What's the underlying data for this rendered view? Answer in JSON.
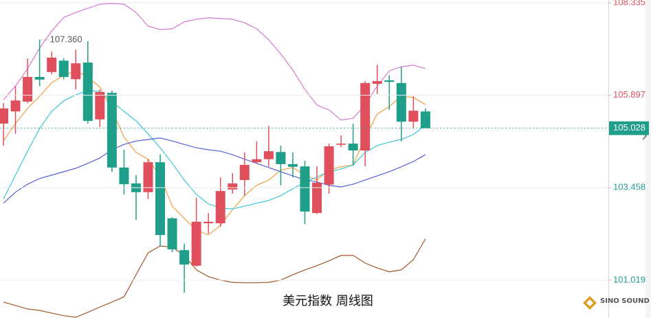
{
  "chart_data": {
    "type": "candlestick",
    "title": "美元指数 周线图",
    "watermark": "SINO SOUND",
    "up_color": "#e0505c",
    "down_color": "#1f9e89",
    "ylim": [
      100.02,
      108.41
    ],
    "yticks": [
      108.335,
      105.897,
      103.458,
      101.019
    ],
    "grid": true,
    "last_price": 105.028,
    "high_marker": {
      "value": 107.36,
      "label": "107.360"
    },
    "open": [
      105.15,
      105.47,
      105.73,
      106.38,
      106.51,
      106.81,
      106.32,
      106.76,
      105.26,
      105.96,
      103.99,
      103.57,
      103.34,
      104.13,
      102.65,
      101.81,
      101.4,
      102.52,
      102.52,
      103.41,
      103.66,
      104.13,
      104.21,
      104.4,
      104.08,
      104.02,
      102.79,
      103.54,
      104.59,
      104.62,
      104.44,
      106.2,
      106.29,
      106.22,
      105.2,
      105.47
    ],
    "high": [
      105.69,
      106.13,
      106.87,
      107.36,
      107.05,
      106.87,
      107.1,
      107.32,
      106.05,
      106.02,
      104.46,
      103.79,
      104.21,
      104.33,
      102.68,
      101.98,
      103.19,
      102.79,
      103.73,
      103.84,
      104.39,
      104.68,
      105.09,
      104.57,
      104.39,
      104.17,
      104.02,
      104.62,
      104.84,
      105.15,
      106.27,
      106.7,
      106.43,
      106.65,
      105.87,
      105.55
    ],
    "low": [
      104.57,
      104.88,
      105.69,
      106.14,
      106.45,
      106.32,
      106.05,
      105.15,
      105.06,
      103.88,
      103.28,
      102.61,
      103.16,
      101.92,
      101.76,
      100.69,
      101.38,
      102.25,
      102.43,
      103.3,
      103.25,
      104.1,
      104.01,
      103.52,
      103.73,
      102.5,
      102.76,
      103.3,
      104.53,
      104.04,
      104.02,
      105.93,
      105.51,
      104.68,
      105.02,
      105.11
    ],
    "close": [
      105.55,
      105.76,
      106.38,
      106.31,
      106.89,
      106.38,
      106.74,
      105.22,
      105.98,
      103.99,
      103.55,
      103.34,
      104.13,
      102.21,
      101.83,
      101.43,
      102.56,
      102.56,
      103.37,
      103.57,
      104.06,
      104.21,
      104.42,
      104.08,
      104.01,
      102.83,
      103.59,
      104.55,
      104.62,
      104.44,
      106.22,
      106.27,
      106.25,
      105.2,
      105.49,
      105.03
    ],
    "overlays": [
      {
        "color": "#f0a040",
        "values": [
          104.69,
          105.15,
          105.55,
          105.87,
          106.23,
          106.42,
          106.54,
          106.38,
          106.11,
          105.51,
          104.79,
          104.39,
          104.21,
          103.77,
          102.97,
          102.65,
          102.34,
          102.21,
          102.47,
          102.88,
          103.25,
          103.52,
          103.66,
          103.92,
          103.99,
          103.79,
          103.66,
          103.93,
          104.01,
          104.06,
          104.79,
          105.4,
          105.6,
          105.87,
          105.84,
          105.65
        ]
      },
      {
        "color": "#3cc8d8",
        "values": [
          103.16,
          103.79,
          104.42,
          105.02,
          105.47,
          105.75,
          105.91,
          106.02,
          106.0,
          105.73,
          105.47,
          105.22,
          104.88,
          104.51,
          104.1,
          103.66,
          103.28,
          103.03,
          102.92,
          102.9,
          102.97,
          103.05,
          103.12,
          103.25,
          103.43,
          103.61,
          103.74,
          103.88,
          103.95,
          104.06,
          104.39,
          104.57,
          104.66,
          104.73,
          104.86,
          105.11
        ]
      },
      {
        "color": "#5560d8",
        "values": [
          103.05,
          103.34,
          103.55,
          103.7,
          103.79,
          103.88,
          103.97,
          104.1,
          104.24,
          104.46,
          104.6,
          104.69,
          104.73,
          104.77,
          104.69,
          104.6,
          104.51,
          104.46,
          104.42,
          104.33,
          104.21,
          104.1,
          103.99,
          103.88,
          103.77,
          103.66,
          103.61,
          103.52,
          103.48,
          103.55,
          103.66,
          103.77,
          103.88,
          104.01,
          104.15,
          104.33
        ]
      },
      {
        "color": "#d678d0",
        "values": [
          105.78,
          106.14,
          106.6,
          107.14,
          107.59,
          107.95,
          108.08,
          108.19,
          108.3,
          108.32,
          108.3,
          108.08,
          107.72,
          107.63,
          107.65,
          107.83,
          107.9,
          107.94,
          107.92,
          107.9,
          107.81,
          107.65,
          107.36,
          106.99,
          106.56,
          106.05,
          105.64,
          105.51,
          105.24,
          105.29,
          105.65,
          106.14,
          106.54,
          106.65,
          106.69,
          106.6
        ]
      },
      {
        "color": "#a0582a",
        "values": [
          100.44,
          100.35,
          100.26,
          100.22,
          100.15,
          100.08,
          100.04,
          100.17,
          100.31,
          100.44,
          100.58,
          101.16,
          101.74,
          101.92,
          101.89,
          101.67,
          101.29,
          101.11,
          101.02,
          100.96,
          100.95,
          100.95,
          100.96,
          101.02,
          101.16,
          101.29,
          101.4,
          101.53,
          101.67,
          101.67,
          101.47,
          101.34,
          101.24,
          101.29,
          101.56,
          102.11
        ]
      }
    ]
  }
}
